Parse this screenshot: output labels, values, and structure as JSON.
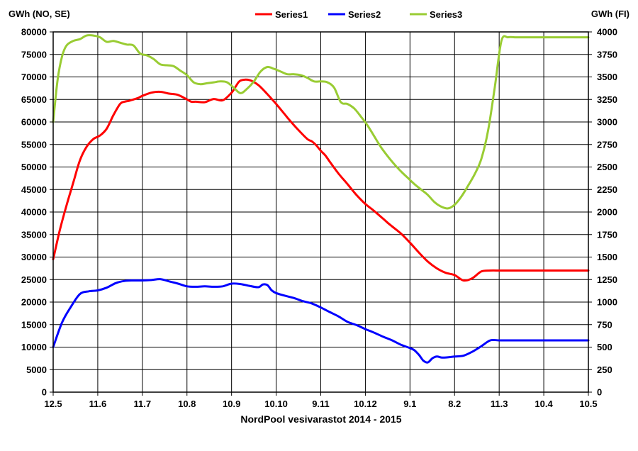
{
  "chart_data": {
    "type": "line",
    "title": "",
    "xlabel": "NordPool vesivarastot 2014 - 2015",
    "ylabel_left": "GWh (NO, SE)",
    "ylabel_right": "GWh (FI)",
    "ylim_left": [
      0,
      80000
    ],
    "ylim_right": [
      0,
      4000
    ],
    "y_ticks_left": [
      "0",
      "5000",
      "10000",
      "15000",
      "20000",
      "25000",
      "30000",
      "35000",
      "40000",
      "45000",
      "50000",
      "55000",
      "60000",
      "65000",
      "70000",
      "75000",
      "80000"
    ],
    "y_ticks_right": [
      "0",
      "250",
      "500",
      "750",
      "1000",
      "1250",
      "1500",
      "1750",
      "2000",
      "2250",
      "2500",
      "2750",
      "3000",
      "3250",
      "3500",
      "3750",
      "4000"
    ],
    "x_ticks": [
      "12.5",
      "11.6",
      "11.7",
      "10.8",
      "10.9",
      "10.10",
      "9.11",
      "10.12",
      "9.1",
      "8.2",
      "11.3",
      "10.4",
      "10.5"
    ],
    "grid": true,
    "legend_position": "top-center",
    "series": [
      {
        "name": "Series1",
        "axis": "left",
        "color": "#ff0000",
        "x": [
          0,
          0.15,
          0.3,
          0.45,
          0.6,
          0.75,
          0.9,
          1.05,
          1.2,
          1.35,
          1.5,
          1.6,
          1.7,
          1.8,
          1.9,
          2.0,
          2.2,
          2.4,
          2.6,
          2.8,
          3.0,
          3.1,
          3.2,
          3.4,
          3.6,
          3.8,
          4.0,
          4.1,
          4.2,
          4.4,
          4.6,
          4.8,
          5.0,
          5.1,
          5.2,
          5.3,
          5.5,
          5.7,
          5.8,
          5.9,
          6.0,
          6.1,
          6.2,
          6.4,
          6.6,
          6.8,
          7.0,
          7.2,
          7.4,
          7.5,
          7.6,
          7.8,
          8.0,
          8.2,
          8.4,
          8.6,
          8.8,
          9.0,
          9.2,
          9.4,
          9.6,
          9.8,
          10.0,
          10.2,
          10.4,
          10.6,
          10.8,
          11.0,
          11.2,
          11.4,
          11.6,
          11.8,
          12.0
        ],
        "y": [
          29500,
          36000,
          41500,
          46500,
          51500,
          54500,
          56200,
          57000,
          58500,
          61500,
          64000,
          64500,
          64700,
          65000,
          65300,
          65800,
          66500,
          66700,
          66300,
          66000,
          65000,
          64500,
          64500,
          64400,
          65100,
          64800,
          66500,
          68000,
          69200,
          69300,
          68200,
          66200,
          64000,
          62800,
          61600,
          60400,
          58200,
          56200,
          55700,
          54800,
          53600,
          52600,
          51200,
          48500,
          46200,
          43800,
          41800,
          40200,
          38500,
          37600,
          36800,
          35200,
          33200,
          31000,
          29000,
          27500,
          26500,
          26000,
          24800,
          25300,
          26800,
          27000,
          27000,
          27000,
          27000,
          27000,
          27000,
          27000,
          27000,
          27000,
          27000,
          27000,
          27000
        ]
      },
      {
        "name": "Series2",
        "axis": "left",
        "color": "#0000ff",
        "x": [
          0,
          0.2,
          0.4,
          0.6,
          0.8,
          1.0,
          1.2,
          1.4,
          1.6,
          1.8,
          2.0,
          2.2,
          2.4,
          2.6,
          2.8,
          3.0,
          3.2,
          3.4,
          3.6,
          3.8,
          4.0,
          4.2,
          4.4,
          4.6,
          4.7,
          4.8,
          4.9,
          5.0,
          5.2,
          5.4,
          5.6,
          5.8,
          6.0,
          6.2,
          6.4,
          6.6,
          6.8,
          7.0,
          7.2,
          7.4,
          7.6,
          7.8,
          8.0,
          8.1,
          8.2,
          8.3,
          8.4,
          8.5,
          8.6,
          8.7,
          8.8,
          8.9,
          9.0,
          9.2,
          9.4,
          9.6,
          9.8,
          10.0,
          10.2,
          10.4,
          10.6,
          10.8,
          11.0,
          11.2,
          11.4,
          11.6,
          11.8,
          12.0
        ],
        "y": [
          10000,
          15500,
          19000,
          21800,
          22400,
          22600,
          23200,
          24200,
          24700,
          24800,
          24800,
          24900,
          25100,
          24600,
          24100,
          23500,
          23400,
          23500,
          23400,
          23500,
          24100,
          24000,
          23600,
          23300,
          23900,
          23800,
          22600,
          22000,
          21400,
          20900,
          20200,
          19700,
          18800,
          17800,
          16800,
          15600,
          14900,
          14000,
          13200,
          12300,
          11500,
          10500,
          9800,
          9300,
          8300,
          7000,
          6600,
          7500,
          7900,
          7700,
          7700,
          7800,
          7900,
          8100,
          9000,
          10200,
          11500,
          11500,
          11500,
          11500,
          11500,
          11500,
          11500,
          11500,
          11500,
          11500,
          11500,
          11500
        ]
      },
      {
        "name": "Series3",
        "axis": "right",
        "color": "#99cc33",
        "x": [
          0,
          0.1,
          0.2,
          0.3,
          0.45,
          0.6,
          0.75,
          0.9,
          1.05,
          1.2,
          1.35,
          1.5,
          1.65,
          1.8,
          1.95,
          2.1,
          2.25,
          2.4,
          2.55,
          2.7,
          2.85,
          3.0,
          3.15,
          3.3,
          3.45,
          3.6,
          3.75,
          3.9,
          4.05,
          4.2,
          4.35,
          4.5,
          4.65,
          4.8,
          4.95,
          5.1,
          5.25,
          5.4,
          5.55,
          5.7,
          5.85,
          6.0,
          6.15,
          6.3,
          6.45,
          6.6,
          6.75,
          6.9,
          7.05,
          7.2,
          7.35,
          7.5,
          7.65,
          7.8,
          7.95,
          8.1,
          8.25,
          8.4,
          8.55,
          8.7,
          8.85,
          9.0,
          9.15,
          9.3,
          9.45,
          9.6,
          9.75,
          9.9,
          10.05,
          10.2,
          10.35,
          10.5,
          10.65,
          10.8,
          10.95,
          11.1,
          11.25,
          11.4,
          11.55,
          11.7,
          11.85,
          12.0
        ],
        "y": [
          3000,
          3470,
          3730,
          3850,
          3900,
          3920,
          3960,
          3960,
          3940,
          3890,
          3900,
          3880,
          3860,
          3850,
          3760,
          3740,
          3700,
          3640,
          3630,
          3620,
          3570,
          3520,
          3440,
          3420,
          3430,
          3440,
          3450,
          3440,
          3380,
          3320,
          3370,
          3450,
          3560,
          3610,
          3590,
          3560,
          3530,
          3530,
          3520,
          3490,
          3450,
          3450,
          3440,
          3380,
          3220,
          3200,
          3150,
          3060,
          2960,
          2840,
          2720,
          2620,
          2530,
          2450,
          2380,
          2310,
          2250,
          2190,
          2110,
          2060,
          2040,
          2080,
          2170,
          2290,
          2420,
          2590,
          2900,
          3380,
          3900,
          3940,
          3940,
          3940,
          3940,
          3940,
          3940,
          3940,
          3940,
          3940,
          3940,
          3940,
          3940,
          3940
        ]
      }
    ]
  }
}
